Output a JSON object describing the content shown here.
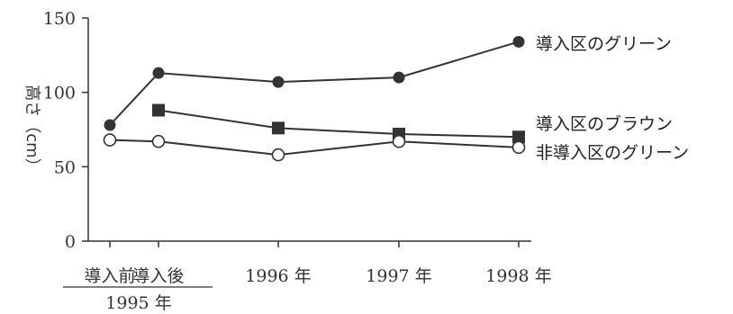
{
  "chart_data": {
    "type": "line",
    "ylabel": "高さ（cm）",
    "ylim": [
      0,
      150
    ],
    "yticks": [
      0,
      50,
      100,
      150
    ],
    "x_ticks": [
      "導入前",
      "導入後",
      "1996 年",
      "1997 年",
      "1998 年"
    ],
    "x_group_label": "1995 年",
    "series": [
      {
        "name": "導入区のグリーン",
        "marker": "filled-circle",
        "x": [
          "導入前",
          "導入後",
          "1996 年",
          "1997 年",
          "1998 年"
        ],
        "values": [
          78,
          113,
          107,
          110,
          134
        ]
      },
      {
        "name": "導入区のブラウン",
        "marker": "filled-square",
        "x": [
          "導入後",
          "1996 年",
          "1997 年",
          "1998 年"
        ],
        "values": [
          88,
          76,
          72,
          70
        ]
      },
      {
        "name": "非導入区のグリーン",
        "marker": "open-circle",
        "x": [
          "導入前",
          "導入後",
          "1996 年",
          "1997 年",
          "1998 年"
        ],
        "values": [
          68,
          67,
          58,
          67,
          63
        ]
      }
    ],
    "grid": false,
    "legend": "inline labels at right end of each line"
  }
}
